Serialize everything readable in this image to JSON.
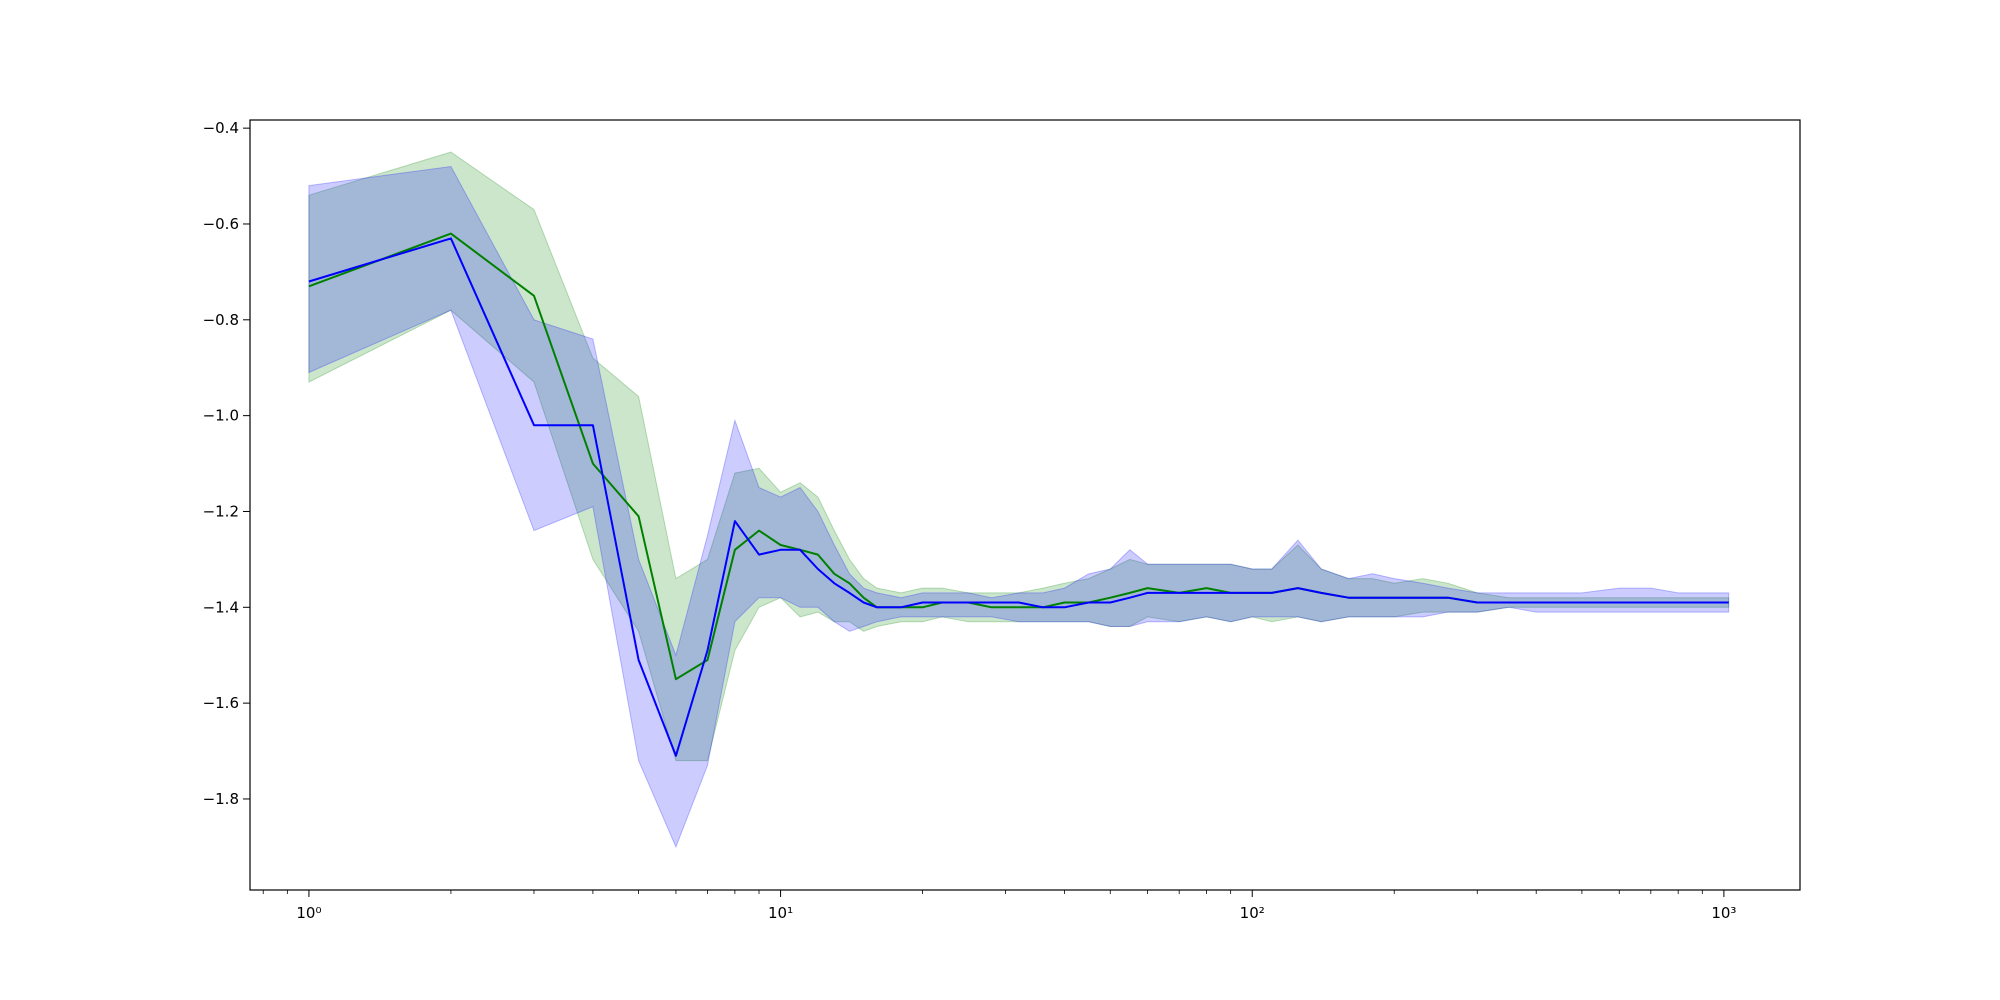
{
  "chart_data": {
    "type": "line",
    "title": "",
    "xlabel": "",
    "ylabel": "",
    "x_scale": "log",
    "xlim": [
      0.75,
      1450
    ],
    "ylim": [
      -1.99,
      -0.383
    ],
    "grid": false,
    "legend": "none",
    "x_ticks": [
      {
        "value": 1,
        "label": "10⁰"
      },
      {
        "value": 10,
        "label": "10¹"
      },
      {
        "value": 100,
        "label": "10²"
      },
      {
        "value": 1000,
        "label": "10³"
      }
    ],
    "y_ticks": [
      {
        "value": -0.4,
        "label": "−0.4"
      },
      {
        "value": -0.6,
        "label": "−0.6"
      },
      {
        "value": -0.8,
        "label": "−0.8"
      },
      {
        "value": -1.0,
        "label": "−1.0"
      },
      {
        "value": -1.2,
        "label": "−1.2"
      },
      {
        "value": -1.4,
        "label": "−1.4"
      },
      {
        "value": -1.6,
        "label": "−1.6"
      },
      {
        "value": -1.8,
        "label": "−1.8"
      }
    ],
    "series": [
      {
        "color": "#008000",
        "band_color": "#008000",
        "x": [
          1,
          2,
          3,
          4,
          5,
          6,
          7,
          8,
          9,
          10,
          11,
          12,
          13,
          14,
          15,
          16,
          18,
          20,
          22,
          25,
          28,
          32,
          36,
          40,
          45,
          50,
          55,
          60,
          70,
          80,
          90,
          100,
          110,
          125,
          140,
          160,
          180,
          200,
          230,
          260,
          300,
          350,
          400,
          500,
          600,
          700,
          800,
          900,
          1024
        ],
        "mean": [
          -0.73,
          -0.62,
          -0.75,
          -1.1,
          -1.21,
          -1.55,
          -1.51,
          -1.28,
          -1.24,
          -1.27,
          -1.28,
          -1.29,
          -1.33,
          -1.35,
          -1.38,
          -1.4,
          -1.4,
          -1.4,
          -1.39,
          -1.39,
          -1.4,
          -1.4,
          -1.4,
          -1.39,
          -1.39,
          -1.38,
          -1.37,
          -1.36,
          -1.37,
          -1.36,
          -1.37,
          -1.37,
          -1.37,
          -1.36,
          -1.37,
          -1.38,
          -1.38,
          -1.38,
          -1.38,
          -1.38,
          -1.39,
          -1.39,
          -1.39,
          -1.39,
          -1.39,
          -1.39,
          -1.39,
          -1.39,
          -1.39
        ],
        "upper": [
          -0.54,
          -0.45,
          -0.57,
          -0.88,
          -0.96,
          -1.34,
          -1.3,
          -1.12,
          -1.11,
          -1.16,
          -1.14,
          -1.17,
          -1.24,
          -1.3,
          -1.34,
          -1.36,
          -1.37,
          -1.36,
          -1.36,
          -1.37,
          -1.37,
          -1.37,
          -1.36,
          -1.35,
          -1.34,
          -1.32,
          -1.3,
          -1.31,
          -1.31,
          -1.31,
          -1.31,
          -1.32,
          -1.32,
          -1.27,
          -1.32,
          -1.34,
          -1.34,
          -1.35,
          -1.34,
          -1.35,
          -1.37,
          -1.38,
          -1.38,
          -1.38,
          -1.38,
          -1.38,
          -1.38,
          -1.38,
          -1.38
        ],
        "lower": [
          -0.93,
          -0.78,
          -0.93,
          -1.3,
          -1.45,
          -1.72,
          -1.72,
          -1.49,
          -1.4,
          -1.38,
          -1.42,
          -1.41,
          -1.43,
          -1.43,
          -1.45,
          -1.44,
          -1.43,
          -1.43,
          -1.42,
          -1.43,
          -1.43,
          -1.43,
          -1.43,
          -1.43,
          -1.43,
          -1.44,
          -1.44,
          -1.42,
          -1.43,
          -1.42,
          -1.43,
          -1.42,
          -1.43,
          -1.42,
          -1.43,
          -1.42,
          -1.42,
          -1.42,
          -1.41,
          -1.41,
          -1.41,
          -1.4,
          -1.4,
          -1.4,
          -1.4,
          -1.4,
          -1.4,
          -1.4,
          -1.4
        ]
      },
      {
        "color": "#0000ff",
        "band_color": "#0000ff",
        "x": [
          1,
          2,
          3,
          4,
          5,
          6,
          7,
          8,
          9,
          10,
          11,
          12,
          13,
          14,
          15,
          16,
          18,
          20,
          22,
          25,
          28,
          32,
          36,
          40,
          45,
          50,
          55,
          60,
          70,
          80,
          90,
          100,
          110,
          125,
          140,
          160,
          180,
          200,
          230,
          260,
          300,
          350,
          400,
          500,
          600,
          700,
          800,
          900,
          1024
        ],
        "mean": [
          -0.72,
          -0.63,
          -1.02,
          -1.02,
          -1.51,
          -1.71,
          -1.49,
          -1.22,
          -1.29,
          -1.28,
          -1.28,
          -1.32,
          -1.35,
          -1.37,
          -1.39,
          -1.4,
          -1.4,
          -1.39,
          -1.39,
          -1.39,
          -1.39,
          -1.39,
          -1.4,
          -1.4,
          -1.39,
          -1.39,
          -1.38,
          -1.37,
          -1.37,
          -1.37,
          -1.37,
          -1.37,
          -1.37,
          -1.36,
          -1.37,
          -1.38,
          -1.38,
          -1.38,
          -1.38,
          -1.38,
          -1.39,
          -1.39,
          -1.39,
          -1.39,
          -1.39,
          -1.39,
          -1.39,
          -1.39,
          -1.39
        ],
        "upper": [
          -0.52,
          -0.48,
          -0.8,
          -0.84,
          -1.3,
          -1.5,
          -1.25,
          -1.01,
          -1.15,
          -1.17,
          -1.15,
          -1.2,
          -1.27,
          -1.33,
          -1.36,
          -1.37,
          -1.38,
          -1.37,
          -1.37,
          -1.37,
          -1.38,
          -1.37,
          -1.37,
          -1.36,
          -1.33,
          -1.32,
          -1.28,
          -1.31,
          -1.31,
          -1.31,
          -1.31,
          -1.32,
          -1.32,
          -1.26,
          -1.32,
          -1.34,
          -1.33,
          -1.34,
          -1.35,
          -1.36,
          -1.37,
          -1.37,
          -1.37,
          -1.37,
          -1.36,
          -1.36,
          -1.37,
          -1.37,
          -1.37
        ],
        "lower": [
          -0.91,
          -0.78,
          -1.24,
          -1.19,
          -1.72,
          -1.9,
          -1.73,
          -1.43,
          -1.38,
          -1.38,
          -1.4,
          -1.4,
          -1.43,
          -1.45,
          -1.44,
          -1.43,
          -1.42,
          -1.42,
          -1.42,
          -1.42,
          -1.42,
          -1.43,
          -1.43,
          -1.43,
          -1.43,
          -1.44,
          -1.44,
          -1.43,
          -1.43,
          -1.42,
          -1.43,
          -1.42,
          -1.42,
          -1.42,
          -1.43,
          -1.42,
          -1.42,
          -1.42,
          -1.42,
          -1.41,
          -1.41,
          -1.4,
          -1.41,
          -1.41,
          -1.41,
          -1.41,
          -1.41,
          -1.41,
          -1.41
        ]
      }
    ]
  }
}
